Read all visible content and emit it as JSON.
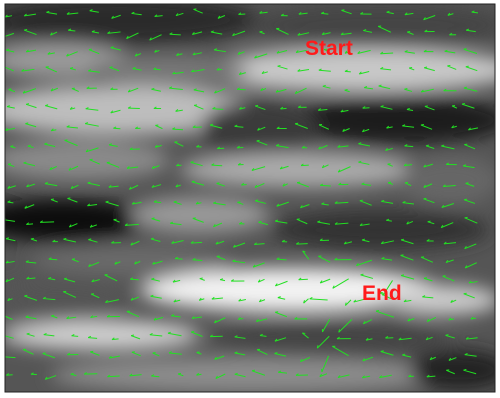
{
  "labels": {
    "start": "Start",
    "end": "End"
  }
}
